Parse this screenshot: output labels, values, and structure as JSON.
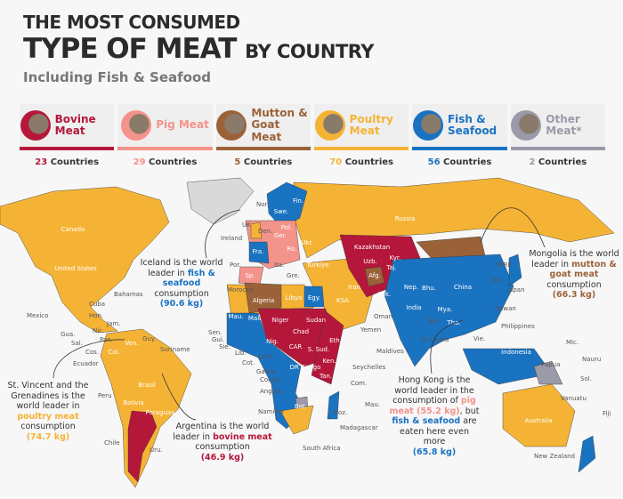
{
  "header": {
    "line1": "THE MOST CONSUMED",
    "line2": "TYPE OF MEAT",
    "line2_suffix": "BY COUNTRY",
    "subtitle": "Including Fish & Seafood"
  },
  "legend": [
    {
      "label": "Bovine Meat",
      "count": "23",
      "count_suffix": "Countries",
      "color": "#b5173a",
      "icon": "cow-photo"
    },
    {
      "label": "Pig Meat",
      "count": "29",
      "count_suffix": "Countries",
      "color": "#f4938a",
      "icon": "pig-photo"
    },
    {
      "label": "Mutton & Goat Meat",
      "count": "5",
      "count_suffix": "Countries",
      "color": "#9b623a",
      "icon": "goat-photo"
    },
    {
      "label": "Poultry Meat",
      "count": "70",
      "count_suffix": "Countries",
      "color": "#f5b335",
      "icon": "chicken-photo"
    },
    {
      "label": "Fish & Seafood",
      "count": "56",
      "count_suffix": "Countries",
      "color": "#1a73c1",
      "icon": "fish-photo"
    },
    {
      "label": "Other Meat*",
      "count": "2",
      "count_suffix": "Countries",
      "color": "#9a9aa8",
      "icon": "rabbit-photo"
    }
  ],
  "map": {
    "inner_labels": [
      "Canada",
      "United States",
      "Russia",
      "Kazakhstan",
      "China",
      "India",
      "Indonesia",
      "Australia",
      "Brazil",
      "Algeria",
      "Libya",
      "Niger",
      "Chad",
      "Sudan",
      "Mali",
      "Mau.",
      "Egy.",
      "KSA",
      "Iran",
      "Afg.",
      "Pak.",
      "DR Congo",
      "CAR",
      "Eth.",
      "Ken.",
      "Tan.",
      "Nig.",
      "Bolivia",
      "Paraguay",
      "Col.",
      "Ven.",
      "Fra.",
      "Ger.",
      "Pol.",
      "Ukr.",
      "Türkiye",
      "Fin.",
      "Swe.",
      "Uzb.",
      "Kyr.",
      "Taj.",
      "Nep.",
      "Bhu.",
      "Mya.",
      "Tha.",
      "Zam.",
      "Zim.",
      "Bot.",
      "S. Sud.",
      "Sp.",
      "Ro."
    ],
    "outer_labels": [
      "Mexico",
      "Cuba",
      "Bahamas",
      "Hon.",
      "Jam.",
      "Nic.",
      "Pan.",
      "Gua.",
      "Sal.",
      "Cos.",
      "Guy.",
      "Suriname",
      "Ecuador",
      "Peru",
      "Chile",
      "Uru.",
      "Nor.",
      "UK",
      "Den.",
      "Ireland",
      "Por.",
      "Morocco",
      "Ita.",
      "Gre.",
      "Oman",
      "Yemen",
      "Maldives",
      "Seychelles",
      "Com.",
      "Mau.",
      "Madagascar",
      "Moz.",
      "Namibia",
      "Angola",
      "Congo",
      "Gabon",
      "Cam.",
      "Cot.",
      "Lib.",
      "Sie.",
      "Gui.",
      "Sen.",
      "South Africa",
      "Sri Lanka",
      "Ban.",
      "Vie.",
      "Philippines",
      "Taiwan",
      "Japan",
      "Kor.",
      "DPRK",
      "Papua",
      "Mic.",
      "Nauru",
      "Sol.",
      "Vanuatu",
      "Fiji",
      "New Zealand"
    ]
  },
  "notes": {
    "iceland": {
      "pre": "Iceland is the world leader in",
      "hl": "fish & seafood",
      "post": "consumption",
      "value": "(90.6 kg)"
    },
    "svg": {
      "pre": "St. Vincent and the Grenadines is the world leader in",
      "hl": "poultry meat",
      "post": "consumption",
      "value": "(74.7 kg)"
    },
    "argentina": {
      "pre": "Argentina is the world leader in",
      "hl": "bovine meat",
      "post": "consumption",
      "value": "(46.9 kg)"
    },
    "mongolia": {
      "pre": "Mongolia is the world leader in",
      "hl": "mutton & goat meat",
      "post": "consumption",
      "value": "(66.3 kg)"
    },
    "hongkong": {
      "pre": "Hong Kong is the world leader in the consumption of",
      "hl": "pig meat (55.2 kg)",
      "mid": ", but",
      "hl2": "fish & seafood",
      "post": "are eaten here even more",
      "value": "(65.8 kg)"
    }
  }
}
